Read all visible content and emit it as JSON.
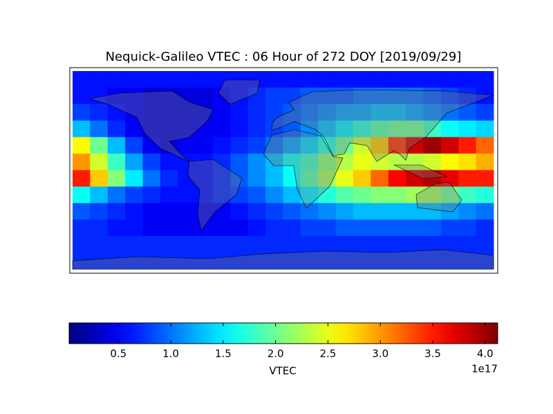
{
  "chart_data": {
    "type": "heatmap",
    "title": "Nequick-Galileo VTEC : 06 Hour of 272 DOY [2019/09/29]",
    "colormap": "jet",
    "values": [
      [
        0.6,
        0.6,
        0.6,
        0.6,
        0.6,
        0.6,
        0.6,
        0.6,
        0.6,
        0.6,
        0.6,
        0.6,
        0.6,
        0.6,
        0.6,
        0.6,
        0.6,
        0.6,
        0.6,
        0.6,
        0.6,
        0.6,
        0.6,
        0.6
      ],
      [
        0.6,
        0.6,
        0.5,
        0.5,
        0.4,
        0.4,
        0.4,
        0.4,
        0.5,
        0.6,
        0.7,
        0.8,
        0.8,
        0.9,
        0.9,
        0.9,
        1.0,
        1.0,
        1.0,
        1.0,
        0.9,
        0.8,
        0.7,
        0.6
      ],
      [
        0.8,
        0.7,
        0.6,
        0.5,
        0.4,
        0.4,
        0.4,
        0.4,
        0.5,
        0.6,
        0.7,
        0.8,
        0.9,
        1.0,
        1.1,
        1.2,
        1.2,
        1.3,
        1.3,
        1.2,
        1.1,
        1.0,
        0.9,
        0.8
      ],
      [
        1.3,
        1.0,
        0.7,
        0.5,
        0.4,
        0.4,
        0.4,
        0.5,
        0.5,
        0.6,
        0.7,
        0.8,
        0.9,
        1.1,
        1.3,
        1.5,
        1.7,
        1.9,
        2.0,
        2.0,
        1.8,
        1.6,
        1.5,
        1.4
      ],
      [
        2.6,
        2.0,
        1.3,
        0.8,
        0.5,
        0.4,
        0.5,
        0.5,
        0.6,
        0.7,
        0.8,
        1.0,
        1.2,
        1.4,
        1.7,
        2.0,
        2.4,
        2.8,
        3.4,
        3.8,
        4.0,
        3.8,
        3.5,
        3.2
      ],
      [
        3.0,
        2.4,
        1.8,
        1.2,
        0.8,
        0.6,
        0.6,
        0.6,
        0.7,
        0.9,
        1.1,
        1.3,
        1.6,
        1.8,
        2.1,
        2.3,
        2.5,
        2.4,
        2.3,
        2.3,
        2.4,
        2.6,
        2.7,
        2.9
      ],
      [
        3.5,
        2.8,
        2.1,
        1.5,
        1.0,
        0.7,
        0.6,
        0.6,
        0.7,
        0.9,
        1.1,
        1.3,
        1.6,
        1.9,
        2.2,
        2.5,
        2.8,
        3.2,
        3.6,
        3.8,
        3.9,
        3.7,
        3.5,
        3.5
      ],
      [
        1.6,
        1.3,
        1.0,
        0.8,
        0.7,
        0.6,
        0.6,
        0.6,
        0.7,
        0.8,
        0.9,
        1.1,
        1.3,
        1.5,
        1.7,
        1.9,
        2.0,
        2.1,
        2.1,
        2.2,
        2.2,
        2.0,
        1.8,
        1.7
      ],
      [
        0.9,
        0.8,
        0.7,
        0.6,
        0.5,
        0.5,
        0.5,
        0.5,
        0.5,
        0.6,
        0.7,
        0.8,
        0.9,
        1.0,
        1.1,
        1.2,
        1.3,
        1.3,
        1.3,
        1.3,
        1.3,
        1.2,
        1.1,
        1.0
      ],
      [
        0.7,
        0.7,
        0.6,
        0.6,
        0.5,
        0.5,
        0.5,
        0.5,
        0.5,
        0.5,
        0.6,
        0.7,
        0.7,
        0.8,
        0.8,
        0.9,
        0.9,
        0.9,
        0.9,
        0.9,
        0.9,
        0.8,
        0.8,
        0.7
      ],
      [
        0.7,
        0.7,
        0.7,
        0.7,
        0.7,
        0.7,
        0.7,
        0.7,
        0.7,
        0.7,
        0.7,
        0.7,
        0.7,
        0.7,
        0.7,
        0.7,
        0.7,
        0.7,
        0.7,
        0.7,
        0.7,
        0.7,
        0.7,
        0.7
      ],
      [
        0.7,
        0.7,
        0.7,
        0.7,
        0.7,
        0.7,
        0.7,
        0.7,
        0.7,
        0.7,
        0.7,
        0.7,
        0.7,
        0.7,
        0.7,
        0.7,
        0.7,
        0.7,
        0.7,
        0.7,
        0.7,
        0.7,
        0.7,
        0.7
      ]
    ],
    "colorbar": {
      "label": "VTEC",
      "offset_label": "1e17",
      "clim": [
        0.03,
        4.12
      ],
      "ticks": [
        0.5,
        {
          "value": 1,
          "label": "1.0"
        },
        1.5,
        {
          "value": 2,
          "label": "2.0"
        },
        2.5,
        {
          "value": 3,
          "label": "3.0"
        },
        3.5,
        {
          "value": 4,
          "label": "4.0"
        }
      ]
    }
  }
}
